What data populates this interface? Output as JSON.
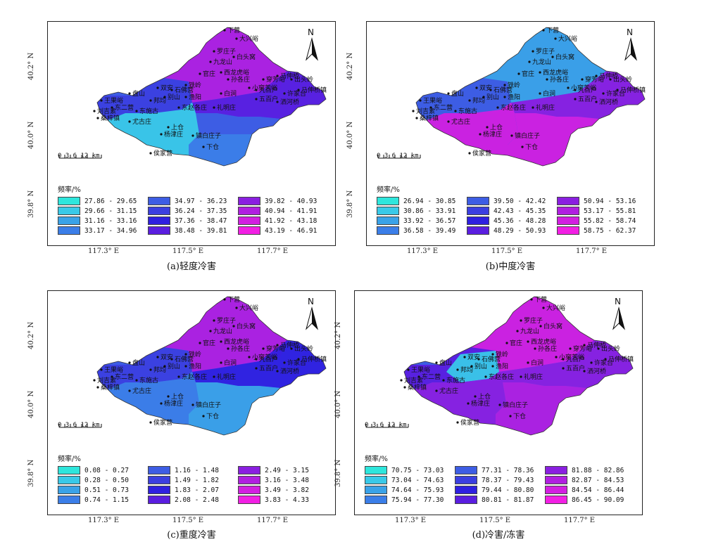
{
  "panels": [
    {
      "caption": "(a)轻度冷害",
      "legend_title": "频率/%",
      "legend": [
        {
          "range": "27.86 - 29.65",
          "color": "#2ee6dc"
        },
        {
          "range": "29.66 - 31.15",
          "color": "#39c9e8"
        },
        {
          "range": "31.16 - 33.16",
          "color": "#3aa2e8"
        },
        {
          "range": "33.17 - 34.96",
          "color": "#3b7ee8"
        },
        {
          "range": "34.97 - 36.23",
          "color": "#3d5de4"
        },
        {
          "range": "36.24 - 37.35",
          "color": "#3b3fe0"
        },
        {
          "range": "37.36 - 38.47",
          "color": "#2f20e0"
        },
        {
          "range": "38.48 - 39.81",
          "color": "#5a1ee0"
        },
        {
          "range": "39.82 - 40.93",
          "color": "#8a1fe0"
        },
        {
          "range": "40.94 - 41.91",
          "color": "#b01fe0"
        },
        {
          "range": "41.92 - 43.18",
          "color": "#d21fe0"
        },
        {
          "range": "43.19 - 46.91",
          "color": "#f21fe4"
        }
      ]
    },
    {
      "caption": "(b)中度冷害",
      "legend_title": "频率/%",
      "legend": [
        {
          "range": "26.94 - 30.85",
          "color": "#2ee6dc"
        },
        {
          "range": "30.86 - 33.91",
          "color": "#39c9e8"
        },
        {
          "range": "33.92 - 36.57",
          "color": "#3aa2e8"
        },
        {
          "range": "36.58 - 39.49",
          "color": "#3b7ee8"
        },
        {
          "range": "39.50 - 42.42",
          "color": "#3d5de4"
        },
        {
          "range": "42.43 - 45.35",
          "color": "#3b3fe0"
        },
        {
          "range": "45.36 - 48.28",
          "color": "#2f20e0"
        },
        {
          "range": "48.29 - 50.93",
          "color": "#5a1ee0"
        },
        {
          "range": "50.94 - 53.16",
          "color": "#8a1fe0"
        },
        {
          "range": "53.17 - 55.81",
          "color": "#b01fe0"
        },
        {
          "range": "55.82 - 58.74",
          "color": "#d21fe0"
        },
        {
          "range": "58.75 - 62.37",
          "color": "#f21fe4"
        }
      ]
    },
    {
      "caption": "(c)重度冷害",
      "legend_title": "频率/%",
      "legend": [
        {
          "range": "0.08 - 0.27",
          "color": "#2ee6dc"
        },
        {
          "range": "0.28 - 0.50",
          "color": "#39c9e8"
        },
        {
          "range": "0.51 - 0.73",
          "color": "#3aa2e8"
        },
        {
          "range": "0.74 - 1.15",
          "color": "#3b7ee8"
        },
        {
          "range": "1.16 - 1.48",
          "color": "#3d5de4"
        },
        {
          "range": "1.49 - 1.82",
          "color": "#3b3fe0"
        },
        {
          "range": "1.83 - 2.07",
          "color": "#2f20e0"
        },
        {
          "range": "2.08 - 2.48",
          "color": "#5a1ee0"
        },
        {
          "range": "2.49 - 3.15",
          "color": "#8a1fe0"
        },
        {
          "range": "3.16 - 3.48",
          "color": "#b01fe0"
        },
        {
          "range": "3.49 - 3.82",
          "color": "#d21fe0"
        },
        {
          "range": "3.83 - 4.33",
          "color": "#f21fe4"
        }
      ]
    },
    {
      "caption": "(d)冷害/冻害",
      "legend_title": "频率/%",
      "legend": [
        {
          "range": "70.75 - 73.03",
          "color": "#2ee6dc"
        },
        {
          "range": "73.04 - 74.63",
          "color": "#39c9e8"
        },
        {
          "range": "74.64 - 75.93",
          "color": "#3aa2e8"
        },
        {
          "range": "75.94 - 77.30",
          "color": "#3b7ee8"
        },
        {
          "range": "77.31 - 78.36",
          "color": "#3d5de4"
        },
        {
          "range": "78.37 - 79.43",
          "color": "#3b3fe0"
        },
        {
          "range": "79.44 - 80.80",
          "color": "#2f20e0"
        },
        {
          "range": "80.81 - 81.87",
          "color": "#5a1ee0"
        },
        {
          "range": "81.88 - 82.86",
          "color": "#8a1fe0"
        },
        {
          "range": "82.87 - 84.53",
          "color": "#b01fe0"
        },
        {
          "range": "84.54 - 86.44",
          "color": "#d21fe0"
        },
        {
          "range": "86.45 - 90.09",
          "color": "#f21fe4"
        }
      ]
    }
  ],
  "axes": {
    "y_ticks": [
      "40.2° N",
      "40.0° N",
      "39.8° N"
    ],
    "x_ticks": [
      "117.3° E",
      "117.5° E",
      "117.7° E"
    ]
  },
  "scale": {
    "numbers": "0 3 6   12 km"
  },
  "north": "N",
  "place_names": [
    "下营",
    "大兴峪",
    "罗庄子",
    "九龙山",
    "白头窝",
    "马伸桥",
    "出头岭",
    "盘山",
    "双安",
    "铁岭",
    "五百户",
    "洒河桥",
    "下仓",
    "上仓",
    "桑梓镇",
    "尤古庄",
    "杨津庄",
    "镇白庄子",
    "侯家营",
    "东赵各庄",
    "礼明庄",
    "别山",
    "东二营",
    "邦均",
    "渔阳",
    "小穿芳峪",
    "孙各庄",
    "官庄",
    "西龙虎峪",
    "九百户",
    "许家台",
    "穿芳峪",
    "刘吉素",
    "王果峪",
    "白涧",
    "东施古",
    "马伸桥镇",
    "石佛营"
  ]
}
